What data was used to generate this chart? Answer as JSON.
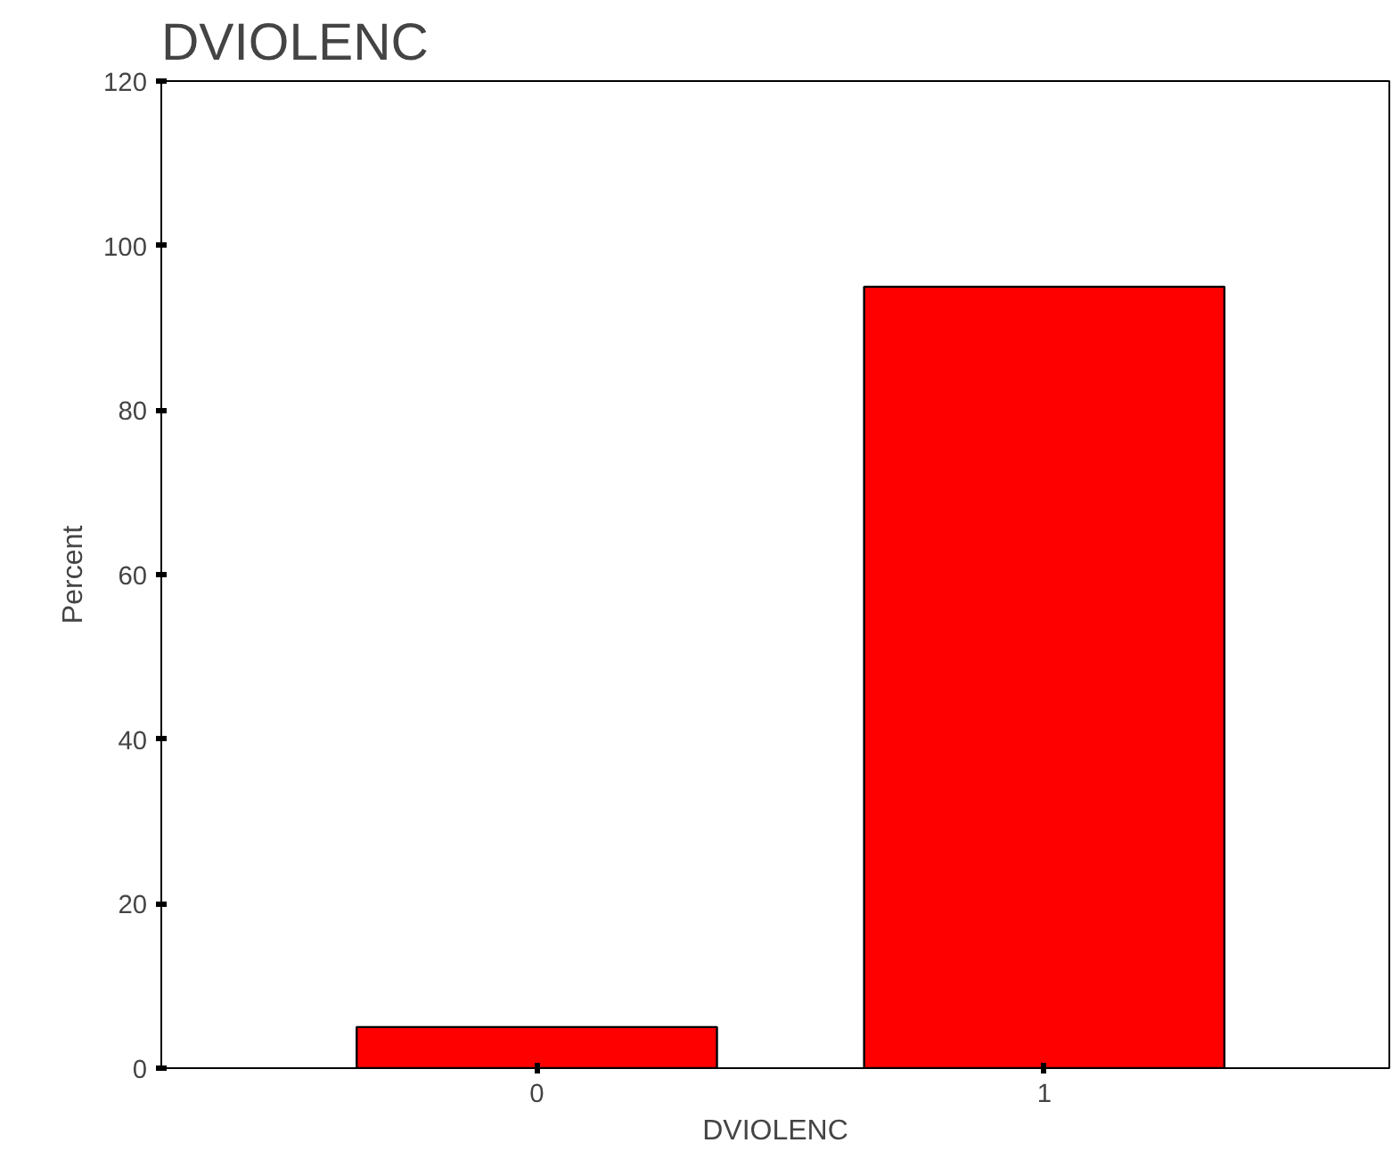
{
  "chart_data": {
    "type": "bar",
    "title": "DVIOLENC",
    "xlabel": "DVIOLENC",
    "ylabel": "Percent",
    "categories": [
      "0",
      "1"
    ],
    "series": [
      {
        "color": "#ff0000",
        "values": [
          5,
          95
        ]
      }
    ],
    "ylim": [
      0,
      120
    ],
    "yticks": [
      0,
      20,
      40,
      60,
      80,
      100,
      120
    ],
    "grid": false
  }
}
